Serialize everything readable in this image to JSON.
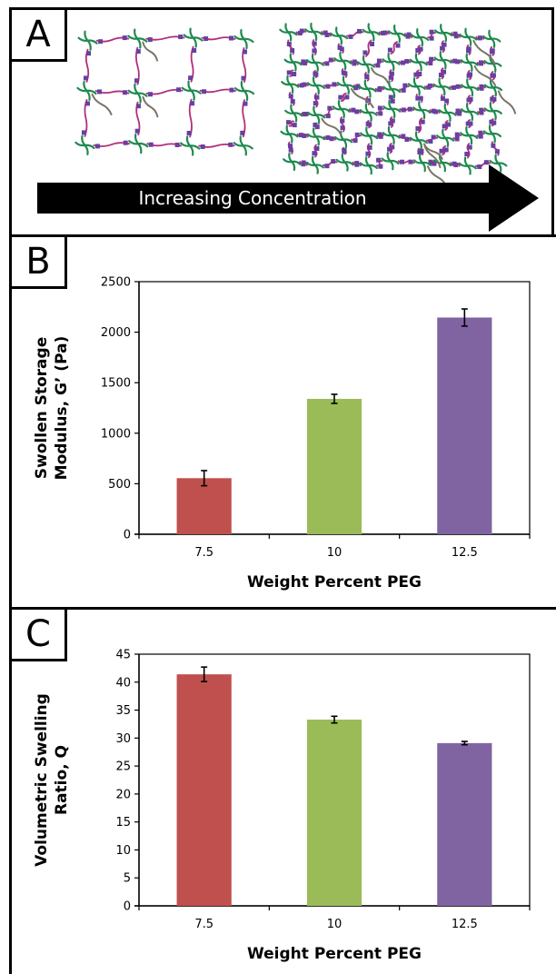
{
  "panels": {
    "a": {
      "letter": "A",
      "arrow_label": "Increasing Concentration"
    },
    "b": {
      "letter": "B"
    },
    "c": {
      "letter": "C"
    }
  },
  "colors": {
    "bar_7_5": "#c0504d",
    "bar_10": "#9bbb59",
    "bar_12_5": "#8064a2",
    "network_green": "#1e8a4e",
    "network_magenta": "#b0307a",
    "network_node": "#6a3fa0",
    "network_gray": "#7a7468"
  },
  "chart_data": [
    {
      "type": "bar",
      "categories": [
        "7.5",
        "10",
        "12.5"
      ],
      "values": [
        555,
        1340,
        2145
      ],
      "errors": [
        75,
        45,
        85
      ],
      "colors": [
        "#c0504d",
        "#9bbb59",
        "#8064a2"
      ],
      "xlabel": "Weight Percent PEG",
      "ylabel_lines": [
        "Swollen Storage",
        "Modulus, G’ (Pa)"
      ],
      "ylim": [
        0,
        2500
      ],
      "yticks": [
        0,
        500,
        1000,
        1500,
        2000,
        2500
      ],
      "grid": false
    },
    {
      "type": "bar",
      "categories": [
        "7.5",
        "10",
        "12.5"
      ],
      "values": [
        41.4,
        33.3,
        29.1
      ],
      "errors": [
        1.3,
        0.6,
        0.3
      ],
      "colors": [
        "#c0504d",
        "#9bbb59",
        "#8064a2"
      ],
      "xlabel": "Weight Percent PEG",
      "ylabel_lines": [
        "Volumetric Swelling",
        "Ratio, Q"
      ],
      "ylim": [
        0,
        45
      ],
      "yticks": [
        0,
        5,
        10,
        15,
        20,
        25,
        30,
        35,
        40,
        45
      ],
      "grid": false
    }
  ]
}
